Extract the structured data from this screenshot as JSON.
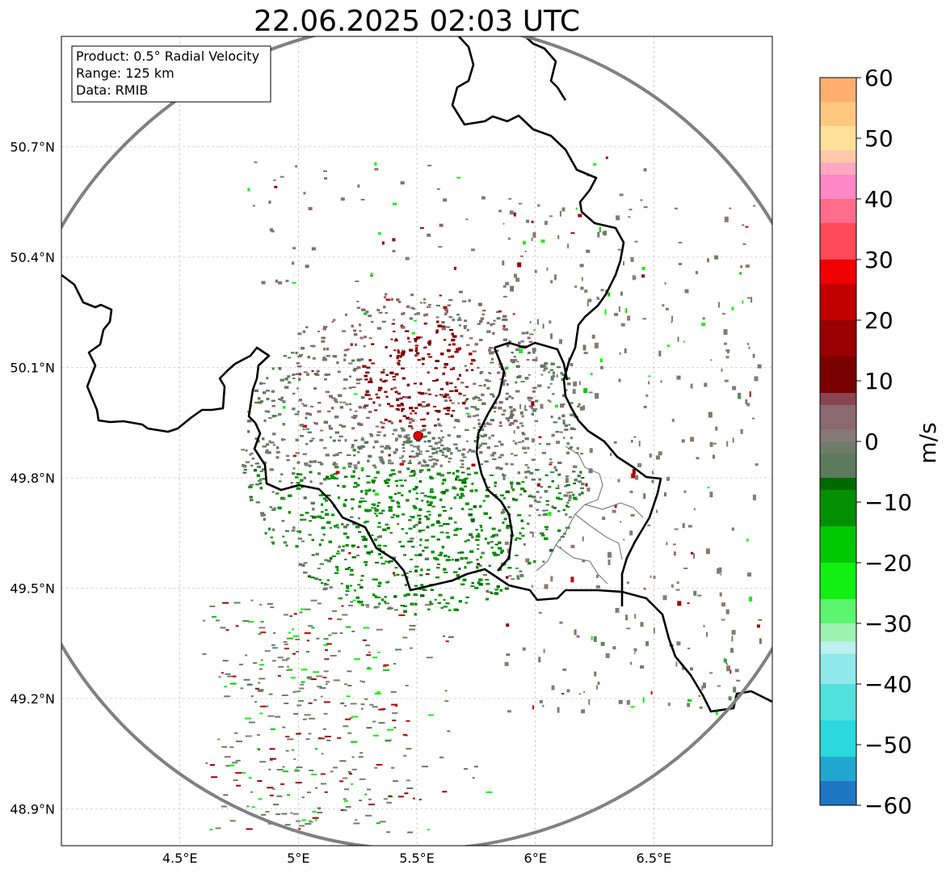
{
  "chart_data": {
    "type": "heatmap",
    "title": "22.06.2025 02:03 UTC",
    "info_box": [
      "Product: 0.5° Radial Velocity",
      "Range: 125 km",
      "Data: RMIB"
    ],
    "x_axis": {
      "range": [
        4.0,
        7.0
      ],
      "ticks": [
        4.5,
        5.0,
        5.5,
        6.0,
        6.5
      ],
      "tick_labels": [
        "4.5°E",
        "5°E",
        "5.5°E",
        "6°E",
        "6.5°E"
      ]
    },
    "y_axis": {
      "range": [
        48.8,
        51.0
      ],
      "ticks": [
        48.9,
        49.2,
        49.5,
        49.8,
        50.1,
        50.4,
        50.7
      ],
      "tick_labels": [
        "48.9°N",
        "49.2°N",
        "49.5°N",
        "49.8°N",
        "50.1°N",
        "50.4°N",
        "50.7°N"
      ]
    },
    "grid": true,
    "radar_site": {
      "lon": 5.505,
      "lat": 49.914
    },
    "range_km": 125,
    "colorbar": {
      "label": "m/s",
      "min": -60,
      "max": 60,
      "ticks": [
        -60,
        -50,
        -40,
        -30,
        -20,
        -10,
        0,
        10,
        20,
        30,
        40,
        50,
        60
      ],
      "tick_labels": [
        "−60",
        "−50",
        "−40",
        "−30",
        "−20",
        "−10",
        "0",
        "10",
        "20",
        "30",
        "40",
        "50",
        "60"
      ],
      "stops": [
        {
          "v": -60,
          "c": "#1f77c4"
        },
        {
          "v": -56,
          "c": "#22a8d0"
        },
        {
          "v": -52,
          "c": "#2bd9dd"
        },
        {
          "v": -46,
          "c": "#53e1e0"
        },
        {
          "v": -40,
          "c": "#8fe9ea"
        },
        {
          "v": -35,
          "c": "#bdf0f0"
        },
        {
          "v": -33,
          "c": "#9ef2b0"
        },
        {
          "v": -30,
          "c": "#5bf56f"
        },
        {
          "v": -26,
          "c": "#11f011"
        },
        {
          "v": -20,
          "c": "#00c800"
        },
        {
          "v": -14,
          "c": "#009000"
        },
        {
          "v": -8,
          "c": "#006a00"
        },
        {
          "v": -6,
          "c": "#5c7a5c"
        },
        {
          "v": -2,
          "c": "#6e7d6a"
        },
        {
          "v": 0,
          "c": "#877a76"
        },
        {
          "v": 2,
          "c": "#8a6a70"
        },
        {
          "v": 6,
          "c": "#8a4450"
        },
        {
          "v": 8,
          "c": "#7a0000"
        },
        {
          "v": 14,
          "c": "#9a0000"
        },
        {
          "v": 20,
          "c": "#c20000"
        },
        {
          "v": 26,
          "c": "#f00000"
        },
        {
          "v": 30,
          "c": "#ff4a5a"
        },
        {
          "v": 36,
          "c": "#ff6d8a"
        },
        {
          "v": 40,
          "c": "#ff88c8"
        },
        {
          "v": 44,
          "c": "#ffa8c0"
        },
        {
          "v": 46,
          "c": "#ffc8a8"
        },
        {
          "v": 48,
          "c": "#ffe09a"
        },
        {
          "v": 52,
          "c": "#ffc880"
        },
        {
          "v": 56,
          "c": "#ffb070"
        },
        {
          "v": 60,
          "c": "#ff9850"
        }
      ]
    },
    "echo_regions": [
      {
        "name": "core-inbound",
        "lon": 5.52,
        "lat": 49.7,
        "rx": 0.36,
        "ry": 0.18,
        "v": -9
      },
      {
        "name": "core-outbound",
        "lon": 5.52,
        "lat": 50.1,
        "rx": 0.22,
        "ry": 0.12,
        "v": 12
      },
      {
        "name": "outbound-halo",
        "lon": 5.4,
        "lat": 50.12,
        "rx": 0.42,
        "ry": 0.18,
        "v": 3
      },
      {
        "name": "zero-band",
        "lon": 5.45,
        "lat": 49.92,
        "rx": 0.75,
        "ry": 0.2,
        "v": -2
      }
    ],
    "colors": {
      "range_ring": "#808080",
      "border": "#000000",
      "province": "#808080",
      "grid": "#b0b0b0",
      "radar_marker": "#e00000"
    }
  }
}
